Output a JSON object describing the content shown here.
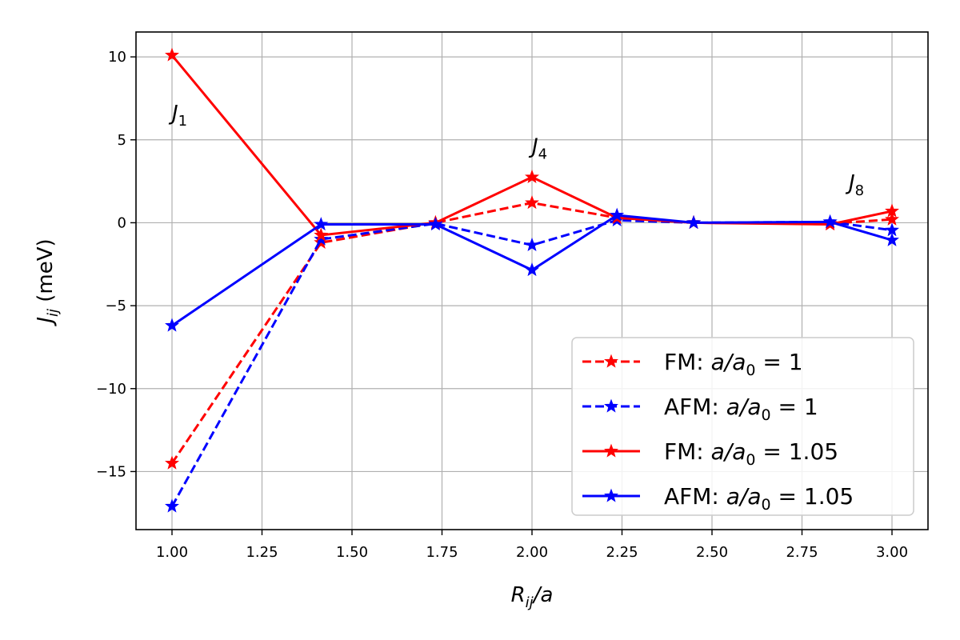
{
  "chart_data": {
    "type": "line",
    "xlabel": {
      "main": "R",
      "sub": "ij",
      "rest": "/a"
    },
    "ylabel": {
      "main": "J",
      "sub": "ij",
      "rest": " (meV)"
    },
    "xlim": [
      0.9,
      3.1
    ],
    "ylim": [
      -18.5,
      11.5
    ],
    "xticks": [
      1.0,
      1.25,
      1.5,
      1.75,
      2.0,
      2.25,
      2.5,
      2.75,
      3.0
    ],
    "xtick_labels": [
      "1.00",
      "1.25",
      "1.50",
      "1.75",
      "2.00",
      "2.25",
      "2.50",
      "2.75",
      "3.00"
    ],
    "yticks": [
      10,
      5,
      0,
      -5,
      -10,
      -15
    ],
    "ytick_labels": [
      "10",
      "5",
      "0",
      "−5",
      "−10",
      "−15"
    ],
    "grid": true,
    "legend_position": "bottom-right",
    "x": [
      1.0,
      1.414,
      1.732,
      2.0,
      2.236,
      2.449,
      2.828,
      3.0
    ],
    "series": [
      {
        "name": "FM: a/a0 = 1",
        "legend": {
          "prefix": "FM: ",
          "value": "1"
        },
        "color": "#ff0000",
        "dash": "dashed",
        "values": [
          -14.5,
          -1.2,
          0.0,
          1.2,
          0.3,
          0.0,
          -0.05,
          0.2
        ]
      },
      {
        "name": "AFM: a/a0 = 1",
        "legend": {
          "prefix": "AFM: ",
          "value": "1"
        },
        "color": "#0000ff",
        "dash": "dashed",
        "values": [
          -17.1,
          -1.0,
          -0.05,
          -1.35,
          0.15,
          0.0,
          0.05,
          -0.45
        ]
      },
      {
        "name": "FM: a/a0 = 1.05",
        "legend": {
          "prefix": "FM: ",
          "value": "1.05"
        },
        "color": "#ff0000",
        "dash": "solid",
        "values": [
          10.1,
          -0.75,
          0.0,
          2.75,
          0.3,
          0.0,
          -0.1,
          0.7
        ]
      },
      {
        "name": "AFM: a/a0 = 1.05",
        "legend": {
          "prefix": "AFM: ",
          "value": "1.05"
        },
        "color": "#0000ff",
        "dash": "solid",
        "values": [
          -6.2,
          -0.1,
          -0.1,
          -2.85,
          0.45,
          0.0,
          0.05,
          -1.05
        ]
      }
    ],
    "annotations": [
      {
        "main": "J",
        "sub": "1",
        "x": 1.0,
        "y": 6.2
      },
      {
        "main": "J",
        "sub": "4",
        "x": 2.0,
        "y": 4.2
      },
      {
        "main": "J",
        "sub": "8",
        "x": 2.88,
        "y": 2.0
      }
    ]
  }
}
